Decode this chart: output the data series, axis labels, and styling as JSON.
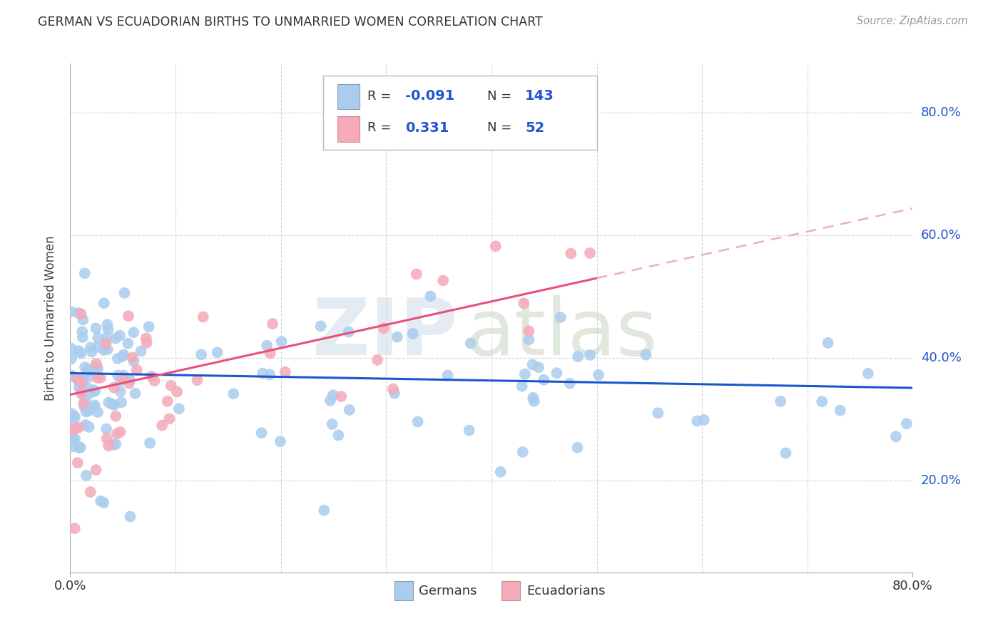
{
  "title": "GERMAN VS ECUADORIAN BIRTHS TO UNMARRIED WOMEN CORRELATION CHART",
  "source": "Source: ZipAtlas.com",
  "ylabel": "Births to Unmarried Women",
  "xlim": [
    0.0,
    0.8
  ],
  "ylim": [
    0.05,
    0.88
  ],
  "yticks": [
    0.2,
    0.4,
    0.6,
    0.8
  ],
  "ytick_labels": [
    "20.0%",
    "40.0%",
    "60.0%",
    "80.0%"
  ],
  "german_color": "#aaccee",
  "ecuadorian_color": "#f4aab8",
  "german_line_color": "#1a56cc",
  "ecuadorian_line_color": "#e8507a",
  "ecuadorian_line_dashed_color": "#e8b0c0",
  "legend_r_german": "-0.091",
  "legend_n_german": "143",
  "legend_r_ecuadorian": "0.331",
  "legend_n_ecuadorian": "52",
  "background_color": "#ffffff",
  "grid_color": "#cccccc",
  "watermark_zip_color": "#d0dcea",
  "watermark_atlas_color": "#c8d4c0"
}
